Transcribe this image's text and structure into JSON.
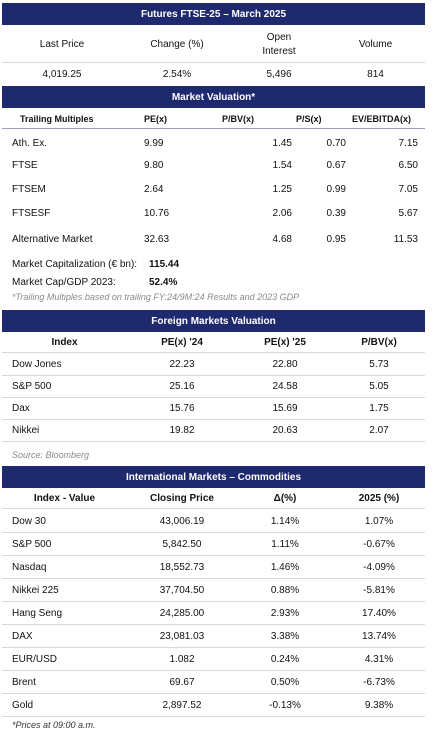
{
  "futures": {
    "title": "Futures FTSE-25 – March 2025",
    "headers": [
      "Last Price",
      "Change (%)",
      "Open Interest",
      "Volume"
    ],
    "values": [
      "4,019.25",
      "2.54%",
      "5,496",
      "814"
    ]
  },
  "valuation": {
    "title": "Market Valuation*",
    "headers": [
      "Trailing Multiples",
      "PE(x)",
      "P/BV(x)",
      "P/S(x)",
      "EV/EBITDA(x)"
    ],
    "rows": [
      [
        "Ath. Ex.",
        "9.99",
        "1.45",
        "0.70",
        "7.15"
      ],
      [
        "FTSE",
        "9.80",
        "1.54",
        "0.67",
        "6.50"
      ],
      [
        "FTSEM",
        "2.64",
        "1.25",
        "0.99",
        "7.05"
      ],
      [
        "FTSESF",
        "10.76",
        "2.06",
        "0.39",
        "5.67"
      ],
      [
        "Alternative Market",
        "32.63",
        "4.68",
        "0.95",
        "11.53"
      ]
    ],
    "market_cap_label": "Market Capitalization (€ bn):",
    "market_cap_value": "115.44",
    "cap_gdp_label": "Market Cap/GDP 2023:",
    "cap_gdp_value": "52.4%",
    "footnote": "*Trailing Multiples based on trailing FY:24/9M:24 Results and 2023 GDP"
  },
  "foreign": {
    "title": "Foreign Markets Valuation",
    "headers": [
      "Index",
      "PE(x) '24",
      "PE(x) '25",
      "P/BV(x)"
    ],
    "rows": [
      [
        "Dow Jones",
        "22.23",
        "22.80",
        "5.73"
      ],
      [
        "S&P 500",
        "25.16",
        "24.58",
        "5.05"
      ],
      [
        "Dax",
        "15.76",
        "15.69",
        "1.75"
      ],
      [
        "Nikkei",
        "19.82",
        "20.63",
        "2.07"
      ]
    ],
    "source": "Source: Bloomberg"
  },
  "international": {
    "title": "International Markets – Commodities",
    "headers": [
      "Index - Value",
      "Closing Price",
      "Δ(%)",
      "2025 (%)"
    ],
    "rows": [
      [
        "Dow 30",
        "43,006.19",
        "1.14%",
        "1.07%"
      ],
      [
        "S&P 500",
        "5,842.50",
        "1.11%",
        "-0.67%"
      ],
      [
        "Nasdaq",
        "18,552.73",
        "1.46%",
        "-4.09%"
      ],
      [
        "Nikkei 225",
        "37,704.50",
        "0.88%",
        "-5.81%"
      ],
      [
        "Hang Seng",
        "24,285.00",
        "2.93%",
        "17.40%"
      ],
      [
        "DAX",
        "23,081.03",
        "3.38%",
        "13.74%"
      ],
      [
        "EUR/USD",
        "1.082",
        "0.24%",
        "4.31%"
      ],
      [
        "Brent",
        "69.67",
        "0.50%",
        "-6.73%"
      ],
      [
        "Gold",
        "2,897.52",
        "-0.13%",
        "9.38%"
      ]
    ],
    "footnote": "*Prices at 09:00 a.m."
  }
}
